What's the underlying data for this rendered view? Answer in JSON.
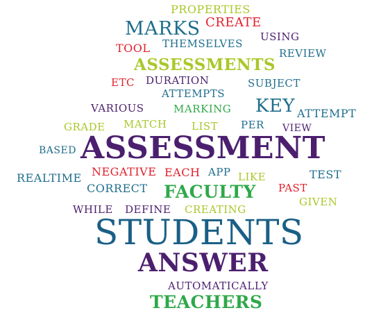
{
  "palette": {
    "teal": "#1f6e8c",
    "purple": "#4b1f6e",
    "green": "#2fa84a",
    "lime": "#a8c82a",
    "red": "#e0202a",
    "navy": "#1a5f86"
  },
  "words": [
    {
      "text": "PROPERTIES",
      "color": "lime"
    },
    {
      "text": "MARKS",
      "color": "teal"
    },
    {
      "text": "CREATE",
      "color": "red"
    },
    {
      "text": "USING",
      "color": "purple"
    },
    {
      "text": "TOOL",
      "color": "red"
    },
    {
      "text": "THEMSELVES",
      "color": "teal"
    },
    {
      "text": "REVIEW",
      "color": "teal"
    },
    {
      "text": "ASSESSMENTS",
      "color": "lime"
    },
    {
      "text": "ETC",
      "color": "red"
    },
    {
      "text": "DURATION",
      "color": "purple"
    },
    {
      "text": "SUBJECT",
      "color": "teal"
    },
    {
      "text": "ATTEMPTS",
      "color": "teal"
    },
    {
      "text": "KEY",
      "color": "teal"
    },
    {
      "text": "VARIOUS",
      "color": "purple"
    },
    {
      "text": "MARKING",
      "color": "green"
    },
    {
      "text": "ATTEMPT",
      "color": "teal"
    },
    {
      "text": "GRADE",
      "color": "lime"
    },
    {
      "text": "MATCH",
      "color": "lime"
    },
    {
      "text": "LIST",
      "color": "lime"
    },
    {
      "text": "PER",
      "color": "teal"
    },
    {
      "text": "VIEW",
      "color": "purple"
    },
    {
      "text": "BASED",
      "color": "teal"
    },
    {
      "text": "ASSESSMENT",
      "color": "purple"
    },
    {
      "text": "NEGATIVE",
      "color": "red"
    },
    {
      "text": "EACH",
      "color": "red"
    },
    {
      "text": "APP",
      "color": "teal"
    },
    {
      "text": "TEST",
      "color": "teal"
    },
    {
      "text": "REALTIME",
      "color": "teal"
    },
    {
      "text": "LIKE",
      "color": "lime"
    },
    {
      "text": "CORRECT",
      "color": "teal"
    },
    {
      "text": "FACULTY",
      "color": "green"
    },
    {
      "text": "PAST",
      "color": "red"
    },
    {
      "text": "GIVEN",
      "color": "lime"
    },
    {
      "text": "WHILE",
      "color": "purple"
    },
    {
      "text": "DEFINE",
      "color": "purple"
    },
    {
      "text": "CREATING",
      "color": "lime"
    },
    {
      "text": "STUDENTS",
      "color": "navy"
    },
    {
      "text": "ANSWER",
      "color": "purple"
    },
    {
      "text": "AUTOMATICALLY",
      "color": "purple"
    },
    {
      "text": "TEACHERS",
      "color": "green"
    }
  ]
}
